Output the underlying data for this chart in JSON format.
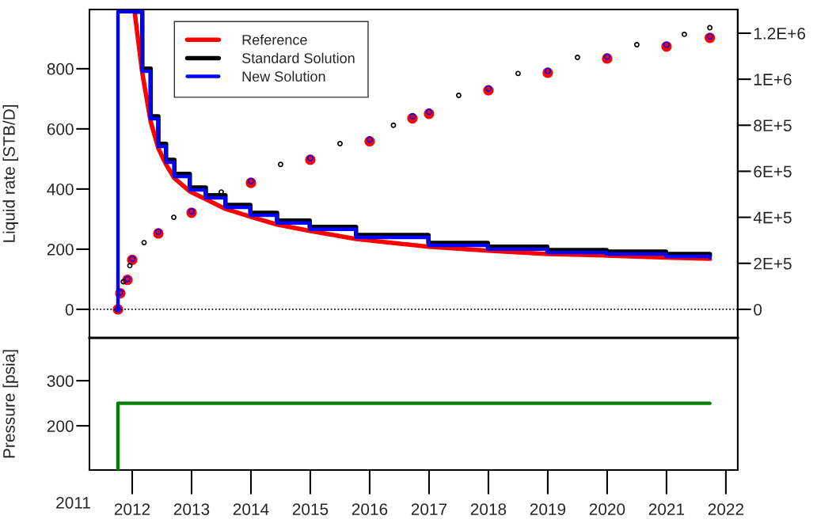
{
  "chart_data": [
    {
      "type": "line",
      "xlim": [
        2011.28,
        2022.2
      ],
      "ylim": [
        -95,
        997
      ],
      "yticks": [
        0,
        200,
        400,
        600,
        800
      ],
      "ylabel": "Liquid rate [STB/D]",
      "y2lim": [
        -124000,
        1303000
      ],
      "y2ticks": [
        {
          "value": 0,
          "label": "0"
        },
        {
          "value": 200000,
          "label": "2E+5"
        },
        {
          "value": 400000,
          "label": "4E+5"
        },
        {
          "value": 600000,
          "label": "6E+5"
        },
        {
          "value": 800000,
          "label": "8E+5"
        },
        {
          "value": 1000000,
          "label": "1E+6"
        },
        {
          "value": 1200000,
          "label": "1.2E+6"
        }
      ],
      "tick_labels": "y",
      "legend": "top left",
      "ref_lines": [
        {
          "axis": "y",
          "value": 0,
          "line_style": "dotted",
          "color": "#000000"
        }
      ],
      "series": [
        {
          "name": "Reference",
          "color": "#ff0000",
          "x": [
            2012.04,
            2012.17,
            2012.31,
            2012.44,
            2012.57,
            2012.71,
            2012.97,
            2013.24,
            2013.57,
            2013.99,
            2014.44,
            2014.99,
            2015.77,
            2016.99,
            2017.99,
            2018.99,
            2019.99,
            2020.99,
            2021.73
          ],
          "values": [
            990,
            785,
            625,
            535,
            482,
            436,
            392,
            366,
            334,
            308,
            282,
            261,
            234,
            208,
            195,
            184,
            179,
            172,
            168
          ]
        },
        {
          "name": "Standard Solution",
          "color": "#000000",
          "type": "step",
          "x": [
            2012.04,
            2012.17,
            2012.31,
            2012.44,
            2012.57,
            2012.71,
            2012.97,
            2013.24,
            2013.57,
            2013.99,
            2014.44,
            2014.99,
            2015.77,
            2016.99,
            2017.99,
            2018.99,
            2019.99,
            2020.99,
            2021.73
          ],
          "values": [
            990,
            800,
            642,
            550,
            497,
            450,
            405,
            379,
            347,
            321,
            295,
            274,
            247,
            221,
            208,
            197,
            192,
            184,
            179
          ]
        },
        {
          "name": "New Solution",
          "color": "#0000ff",
          "type": "step",
          "x": [
            2011.76,
            2011.76,
            2012.04,
            2012.17,
            2012.31,
            2012.44,
            2012.57,
            2012.71,
            2012.97,
            2013.24,
            2013.57,
            2013.99,
            2014.44,
            2014.99,
            2015.77,
            2016.99,
            2017.99,
            2018.99,
            2019.99,
            2020.99,
            2021.73
          ],
          "values": [
            0,
            990,
            990,
            792,
            634,
            542,
            489,
            442,
            397,
            371,
            339,
            313,
            287,
            266,
            239,
            213,
            200,
            189,
            184,
            176,
            171
          ]
        },
        {
          "color": "#ff0000",
          "type": "scatter",
          "axis": "y2",
          "marker": "circle",
          "x": [
            2011.76,
            2011.8,
            2011.92,
            2012.0,
            2012.44,
            2013.0,
            2014.0,
            2015.0,
            2016.0,
            2016.72,
            2017.0,
            2018.0,
            2019.0,
            2020.0,
            2021.0,
            2021.73
          ],
          "values": [
            0,
            70000,
            128000,
            215000,
            330000,
            420000,
            550000,
            650000,
            730000,
            830000,
            850000,
            952000,
            1028000,
            1090000,
            1142000,
            1180000
          ]
        },
        {
          "color": "#000000",
          "type": "scatter",
          "axis": "y2",
          "marker": "circle",
          "x": [
            2011.85,
            2011.96,
            2012.2,
            2012.7,
            2013.5,
            2014.5,
            2015.5,
            2016.4,
            2017.5,
            2018.5,
            2019.5,
            2020.5,
            2021.3,
            2021.73
          ],
          "values": [
            120000,
            190000,
            290000,
            400000,
            510000,
            630000,
            720000,
            800000,
            930000,
            1025000,
            1095000,
            1150000,
            1195000,
            1224000
          ]
        },
        {
          "color": "#0000ff",
          "type": "scatter",
          "axis": "y2",
          "marker": "circle",
          "x": [
            2011.76,
            2011.8,
            2011.92,
            2012.0,
            2012.44,
            2013.0,
            2014.0,
            2015.0,
            2016.0,
            2016.72,
            2017.0,
            2018.0,
            2019.0,
            2020.0,
            2021.0,
            2021.73
          ],
          "values": [
            0,
            73000,
            132000,
            220000,
            337000,
            426000,
            557000,
            657000,
            738000,
            839000,
            858000,
            960000,
            1036000,
            1098000,
            1150000,
            1186000
          ]
        }
      ]
    },
    {
      "type": "step",
      "xlim": [
        2011.28,
        2022.2
      ],
      "xticks": [
        2012,
        2013,
        2014,
        2015,
        2016,
        2017,
        2018,
        2019,
        2020,
        2021,
        2022
      ],
      "ylim": [
        102,
        395
      ],
      "yticks": [
        200,
        300
      ],
      "ylabel": "Pressure [psia]",
      "annotations": [
        "2011"
      ],
      "series": [
        {
          "color": "#008000",
          "x": [
            2011.76,
            2011.76,
            2021.73
          ],
          "values": [
            102,
            250,
            250
          ]
        }
      ]
    }
  ]
}
